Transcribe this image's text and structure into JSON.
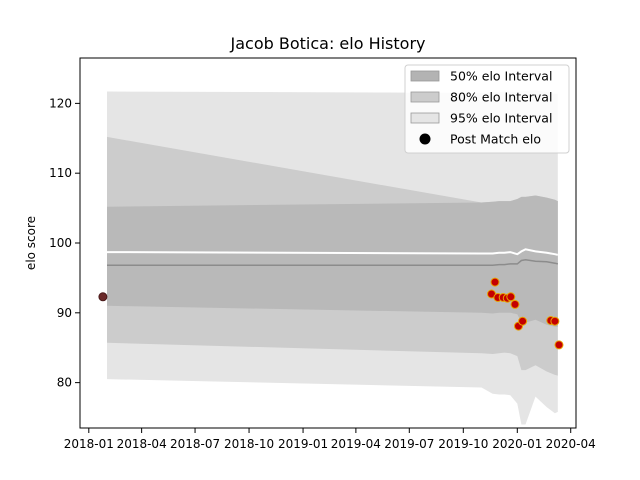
{
  "chart_data": {
    "type": "area",
    "title": "Jacob Botica: elo History",
    "xlabel": "",
    "ylabel": "elo score",
    "x_ticks": [
      "2018-01",
      "2018-04",
      "2018-07",
      "2018-10",
      "2019-01",
      "2019-04",
      "2019-07",
      "2019-10",
      "2020-01",
      "2020-04"
    ],
    "y_ticks": [
      80,
      90,
      100,
      110,
      120
    ],
    "xlim": [
      "2017-12-17",
      "2020-04-10"
    ],
    "ylim": [
      73.5,
      126.5
    ],
    "grid": false,
    "legend_position": "top-right",
    "legend": [
      {
        "label": "50% elo Interval",
        "color": "#b3b3b3",
        "kind": "patch"
      },
      {
        "label": "80% elo Interval",
        "color": "#cccccc",
        "kind": "patch"
      },
      {
        "label": "95% elo Interval",
        "color": "#e5e5e5",
        "kind": "patch"
      },
      {
        "label": "Post Match elo",
        "color": "#000000",
        "kind": "marker"
      }
    ],
    "bands": {
      "x": [
        "2018-02-01",
        "2019-11-01",
        "2019-11-20",
        "2019-12-01",
        "2019-12-10",
        "2019-12-20",
        "2020-01-01",
        "2020-01-08",
        "2020-01-15",
        "2020-02-01",
        "2020-02-20",
        "2020-03-05",
        "2020-03-10"
      ],
      "band95_upper": [
        121.7,
        121.5,
        121.6,
        121.6,
        121.7,
        121.7,
        121.6,
        121.8,
        121.8,
        121.9,
        121.6,
        121.4,
        121.4
      ],
      "band95_lower": [
        80.5,
        79.3,
        78.4,
        78.3,
        78.3,
        78.2,
        77.0,
        74.0,
        74.0,
        78.0,
        76.5,
        75.6,
        75.8
      ],
      "band80_upper": [
        115.2,
        105.8,
        105.9,
        106.0,
        106.0,
        106.0,
        106.3,
        106.6,
        106.6,
        106.8,
        106.5,
        106.2,
        106.0
      ],
      "band80_lower": [
        85.7,
        84.2,
        84.1,
        84.2,
        84.3,
        84.2,
        83.8,
        81.8,
        81.8,
        82.5,
        81.6,
        81.1,
        81.0
      ],
      "band50_upper": [
        105.2,
        105.8,
        105.9,
        106.0,
        106.0,
        106.0,
        106.3,
        106.6,
        106.6,
        106.8,
        106.5,
        106.2,
        106.0
      ],
      "band50_lower": [
        91.0,
        90.0,
        89.9,
        90.0,
        90.0,
        90.0,
        89.8,
        88.6,
        88.6,
        89.0,
        88.3,
        88.0,
        88.0
      ],
      "median": [
        96.8,
        96.8,
        96.8,
        96.9,
        96.9,
        97.0,
        97.0,
        97.5,
        97.6,
        97.4,
        97.3,
        97.1,
        97.0
      ],
      "mean": [
        98.7,
        98.5,
        98.5,
        98.6,
        98.6,
        98.7,
        98.4,
        98.8,
        99.1,
        98.8,
        98.6,
        98.4,
        98.3
      ]
    },
    "points": [
      {
        "x": "2018-01-25",
        "y": 92.3,
        "first": true
      },
      {
        "x": "2019-11-18",
        "y": 92.7
      },
      {
        "x": "2019-11-24",
        "y": 94.4
      },
      {
        "x": "2019-11-29",
        "y": 92.2
      },
      {
        "x": "2019-12-08",
        "y": 92.2
      },
      {
        "x": "2019-12-15",
        "y": 92.1
      },
      {
        "x": "2019-12-21",
        "y": 92.3
      },
      {
        "x": "2019-12-28",
        "y": 91.2
      },
      {
        "x": "2020-01-03",
        "y": 88.1
      },
      {
        "x": "2020-01-10",
        "y": 88.8
      },
      {
        "x": "2020-02-27",
        "y": 88.9
      },
      {
        "x": "2020-03-05",
        "y": 88.8
      },
      {
        "x": "2020-03-12",
        "y": 85.4
      }
    ]
  }
}
